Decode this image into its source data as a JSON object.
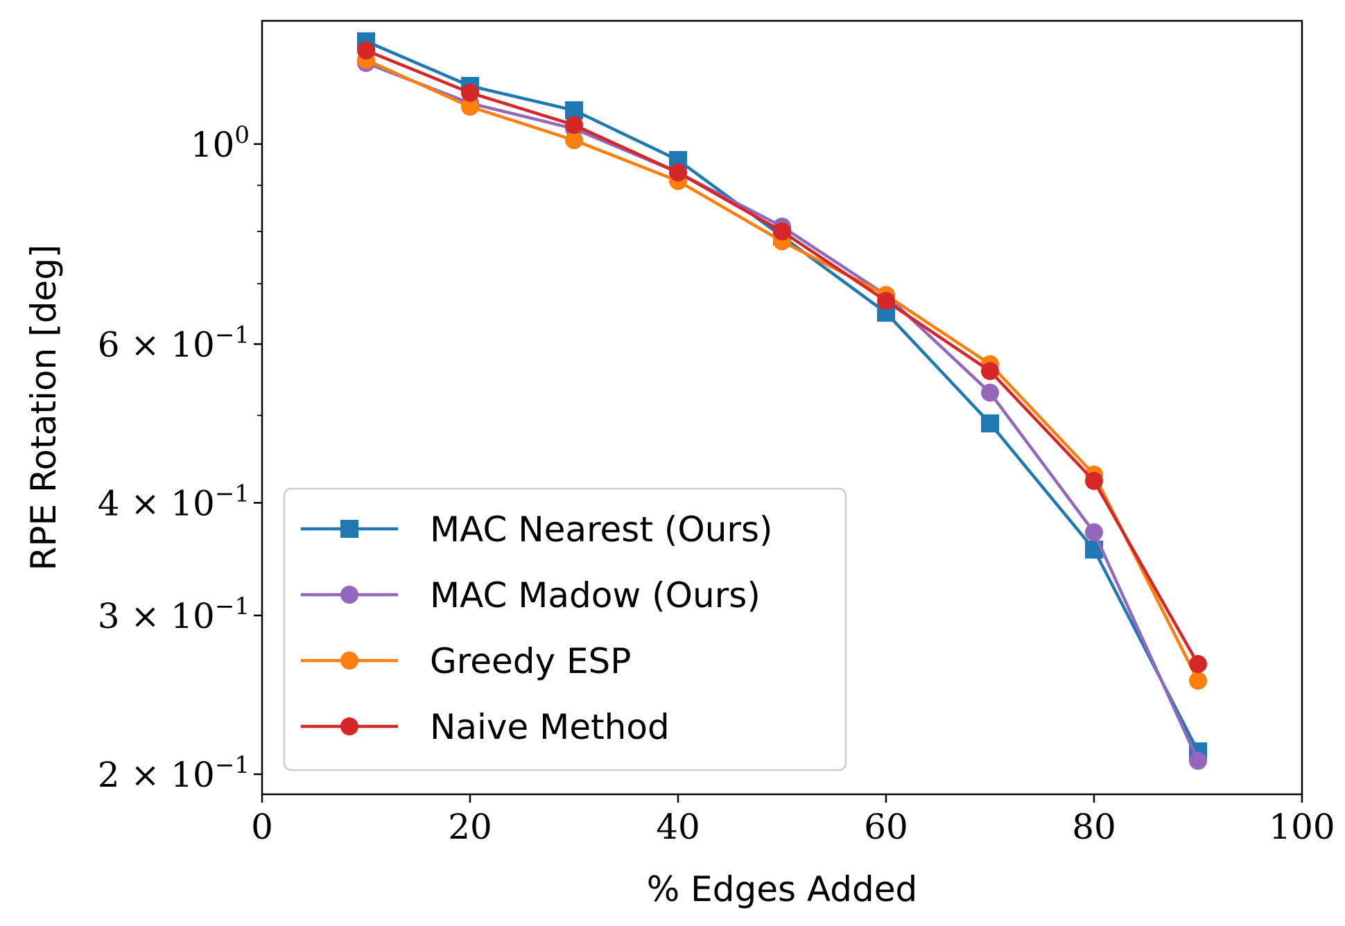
{
  "chart_data": {
    "type": "line",
    "title": "",
    "xlabel": "% Edges Added",
    "ylabel": "RPE Rotation [deg]",
    "x": [
      10,
      20,
      30,
      40,
      50,
      60,
      70,
      80,
      90
    ],
    "xlim": [
      0,
      100
    ],
    "ylim": [
      0.19,
      1.37
    ],
    "yscale": "log",
    "grid": false,
    "legend_position": "lower-left",
    "x_ticks": [
      {
        "value": 0,
        "label": "0"
      },
      {
        "value": 20,
        "label": "20"
      },
      {
        "value": 40,
        "label": "40"
      },
      {
        "value": 60,
        "label": "60"
      },
      {
        "value": 80,
        "label": "80"
      },
      {
        "value": 100,
        "label": "100"
      }
    ],
    "y_ticks": [
      {
        "value": 1.0,
        "mantissa": "",
        "base": "10",
        "exponent": "0"
      },
      {
        "value": 0.6,
        "mantissa": "6 × ",
        "base": "10",
        "exponent": "−1"
      },
      {
        "value": 0.4,
        "mantissa": "4 × ",
        "base": "10",
        "exponent": "−1"
      },
      {
        "value": 0.3,
        "mantissa": "3 × ",
        "base": "10",
        "exponent": "−1"
      },
      {
        "value": 0.2,
        "mantissa": "2 × ",
        "base": "10",
        "exponent": "−1"
      }
    ],
    "series": [
      {
        "name": "MAC Nearest (Ours)",
        "color": "#1f77b4",
        "marker": "square",
        "values": [
          1.3,
          1.16,
          1.09,
          0.96,
          0.79,
          0.65,
          0.49,
          0.355,
          0.212
        ]
      },
      {
        "name": "MAC Madow (Ours)",
        "color": "#9467bd",
        "marker": "circle",
        "values": [
          1.23,
          1.11,
          1.04,
          0.93,
          0.81,
          0.68,
          0.53,
          0.371,
          0.207
        ]
      },
      {
        "name": "Greedy ESP",
        "color": "#ff7f0e",
        "marker": "circle",
        "values": [
          1.24,
          1.1,
          1.01,
          0.91,
          0.78,
          0.68,
          0.57,
          0.43,
          0.254
        ]
      },
      {
        "name": "Naive Method",
        "color": "#d62728",
        "marker": "circle",
        "values": [
          1.27,
          1.14,
          1.05,
          0.93,
          0.8,
          0.67,
          0.56,
          0.423,
          0.265
        ]
      }
    ]
  }
}
